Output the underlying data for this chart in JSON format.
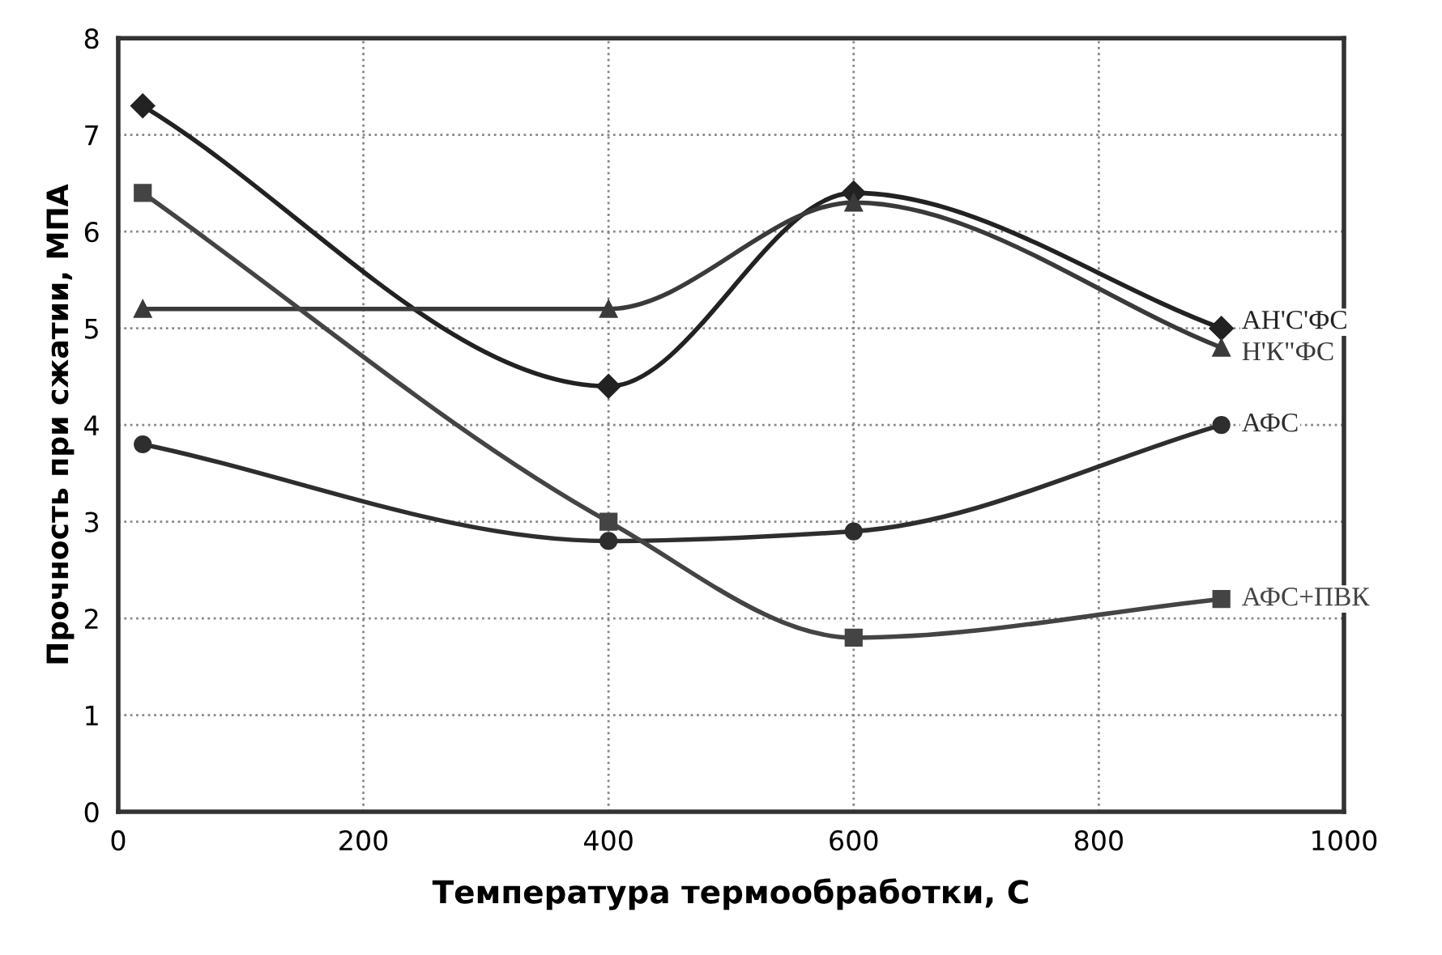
{
  "chart_data": {
    "type": "line",
    "xlabel": "Температура термообработки, С",
    "ylabel": "Прочность при сжатии, МПА",
    "xlim": [
      0,
      1000
    ],
    "xticks": [
      0,
      200,
      400,
      600,
      800,
      1000
    ],
    "ylim": [
      0,
      8
    ],
    "yticks": [
      0,
      1,
      2,
      3,
      4,
      5,
      6,
      7,
      8
    ],
    "grid": true,
    "line_style": "solid",
    "series": [
      {
        "name": "АН'С'ФС",
        "color": "#222222",
        "marker": "diamond",
        "x": [
          20,
          400,
          600,
          900
        ],
        "values": [
          7.3,
          4.4,
          6.4,
          5.0
        ]
      },
      {
        "name": "Н'К\"ФС",
        "color": "#3a3a3a",
        "marker": "triangle",
        "x": [
          20,
          400,
          600,
          900
        ],
        "values": [
          5.2,
          5.2,
          6.3,
          4.8
        ]
      },
      {
        "name": "АФС",
        "color": "#2e2e2e",
        "marker": "circle",
        "x": [
          20,
          400,
          600,
          900
        ],
        "values": [
          3.8,
          2.8,
          2.9,
          4.0
        ]
      },
      {
        "name": "АФС+ПВК",
        "color": "#444444",
        "marker": "square",
        "x": [
          20,
          400,
          600,
          900
        ],
        "values": [
          6.4,
          3.0,
          1.8,
          2.2
        ]
      }
    ]
  }
}
